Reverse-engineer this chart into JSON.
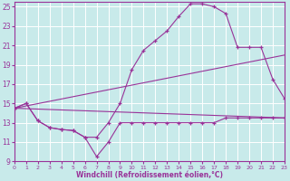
{
  "background_color": "#c8eaea",
  "grid_color": "#ffffff",
  "line_color": "#993399",
  "xlabel": "Windchill (Refroidissement éolien,°C)",
  "xlim": [
    0,
    23
  ],
  "ylim": [
    9,
    25.5
  ],
  "xticks": [
    0,
    1,
    2,
    3,
    4,
    5,
    6,
    7,
    8,
    9,
    10,
    11,
    12,
    13,
    14,
    15,
    16,
    17,
    18,
    19,
    20,
    21,
    22,
    23
  ],
  "yticks": [
    9,
    11,
    13,
    15,
    17,
    19,
    21,
    23,
    25
  ],
  "series": [
    {
      "x": [
        0,
        1,
        2,
        3,
        4,
        5,
        6,
        7,
        8,
        9,
        10,
        11,
        12,
        13,
        14,
        15,
        16,
        17,
        18,
        19,
        20,
        21,
        22,
        23
      ],
      "y": [
        14.5,
        15.0,
        13.2,
        12.5,
        12.3,
        12.2,
        11.5,
        9.5,
        11.0,
        13.0,
        13.0,
        13.0,
        13.0,
        13.0,
        13.0,
        13.0,
        13.0,
        13.0,
        13.5,
        13.5,
        13.5,
        13.5,
        13.5,
        13.5
      ]
    },
    {
      "x": [
        0,
        1,
        2,
        3,
        4,
        5,
        6,
        7,
        8,
        9,
        10,
        11,
        12,
        13,
        14,
        15,
        16,
        17,
        18,
        19,
        20,
        21,
        22,
        23
      ],
      "y": [
        14.5,
        15.0,
        13.2,
        12.5,
        12.3,
        12.2,
        11.5,
        11.5,
        13.0,
        15.0,
        18.5,
        20.5,
        21.5,
        22.5,
        24.0,
        25.3,
        25.3,
        25.0,
        24.3,
        20.8,
        20.8,
        20.8,
        17.5,
        15.5
      ]
    },
    {
      "x": [
        0,
        23
      ],
      "y": [
        14.5,
        13.5
      ]
    },
    {
      "x": [
        0,
        23
      ],
      "y": [
        14.5,
        20.0
      ]
    }
  ]
}
